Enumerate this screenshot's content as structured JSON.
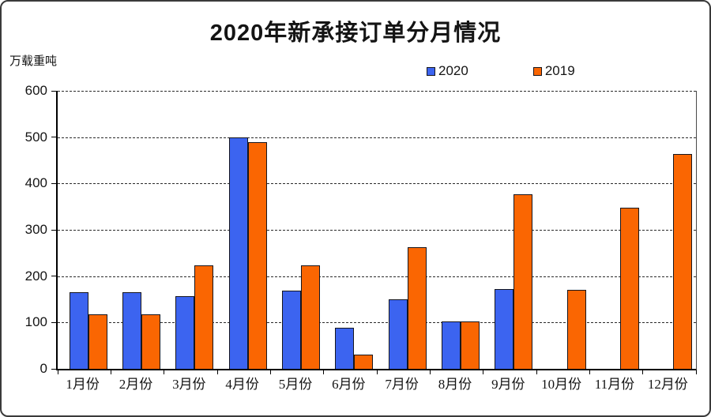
{
  "chart_data": {
    "type": "bar",
    "title": "2020年新承接订单分月情况",
    "ylabel": "万载重吨",
    "xlabel": "",
    "categories": [
      "1月份",
      "2月份",
      "3月份",
      "4月份",
      "5月份",
      "6月份",
      "7月份",
      "8月份",
      "9月份",
      "10月份",
      "11月份",
      "12月份"
    ],
    "series": [
      {
        "name": "2020",
        "color": "#3c64f0",
        "values": [
          166,
          166,
          156,
          499,
          168,
          88,
          150,
          102,
          172,
          0,
          0,
          0
        ]
      },
      {
        "name": "2019",
        "color": "#fa6602",
        "values": [
          117,
          117,
          224,
          490,
          224,
          30,
          263,
          102,
          376,
          171,
          348,
          463
        ]
      }
    ],
    "ylim": [
      0,
      600
    ],
    "ytick_step": 100,
    "yticks": [
      "0",
      "100",
      "200",
      "300",
      "400",
      "500",
      "600"
    ],
    "grid": "horizontal-dashed",
    "legend_position": "top-center",
    "bar_border_color": "#16161d"
  }
}
